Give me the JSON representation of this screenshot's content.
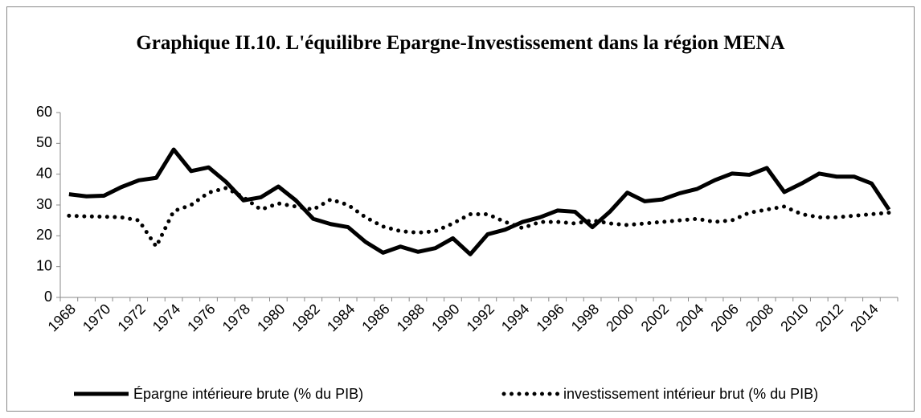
{
  "chart_data": {
    "type": "line",
    "title": "Graphique II.10. L'équilibre Epargne-Investissement dans la région MENA",
    "categories": [
      "1968",
      null,
      "1970",
      null,
      "1972",
      null,
      "1974",
      null,
      "1976",
      null,
      "1978",
      null,
      "1980",
      null,
      "1982",
      null,
      "1984",
      null,
      "1986",
      null,
      "1988",
      null,
      "1990",
      null,
      "1992",
      null,
      "1994",
      null,
      "1996",
      null,
      "1998",
      null,
      "2000",
      null,
      "2002",
      null,
      "2004",
      null,
      "2006",
      null,
      "2008",
      null,
      "2010",
      null,
      "2012",
      null,
      "2014",
      null
    ],
    "series": [
      {
        "name": "Épargne intérieure brute (% du PIB)",
        "color": "#000000",
        "style": "solid",
        "values": [
          33.5,
          32.8,
          33,
          35.8,
          38,
          38.8,
          48,
          41,
          42.2,
          37.5,
          31.5,
          32.5,
          36,
          31.5,
          25.5,
          23.8,
          22.8,
          18,
          14.5,
          16.5,
          14.8,
          16,
          19.2,
          14,
          20.5,
          22,
          24.5,
          26,
          28.2,
          27.8,
          22.8,
          27.8,
          34,
          31.2,
          31.8,
          33.8,
          35.2,
          38,
          40.2,
          39.8,
          42,
          34.2,
          37,
          40.2,
          39.2,
          39.2,
          37,
          28.5
        ]
      },
      {
        "name": "investissement intérieur brut (% du PIB)",
        "color": "#000000",
        "style": "dotted",
        "values": [
          26.5,
          26.3,
          26.2,
          26,
          25,
          16.5,
          28,
          30,
          34,
          35.5,
          32.5,
          28.5,
          30.5,
          29.5,
          28.5,
          31.8,
          30,
          26,
          23,
          21.5,
          21,
          21.5,
          24,
          27,
          27,
          24.5,
          22.5,
          24.5,
          24.5,
          24,
          25,
          24,
          23.5,
          24,
          24.5,
          25,
          25.5,
          24.5,
          25,
          27.5,
          28.5,
          29.5,
          27,
          26,
          26,
          26.5,
          27,
          27.5
        ]
      }
    ],
    "ylim": [
      0,
      60
    ],
    "yticks": [
      0,
      10,
      20,
      30,
      40,
      50,
      60
    ],
    "grid": false,
    "legend": "bottom"
  }
}
